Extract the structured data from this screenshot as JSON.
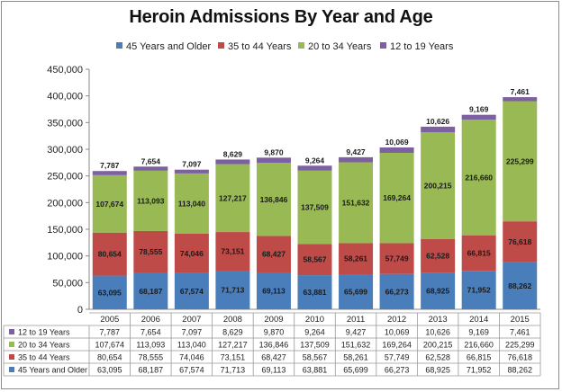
{
  "chart_data": {
    "type": "bar",
    "stacked": true,
    "title": "Heroin Admissions By Year and Age",
    "categories": [
      "2005",
      "2006",
      "2007",
      "2008",
      "2009",
      "2010",
      "2011",
      "2012",
      "2013",
      "2014",
      "2015"
    ],
    "series": [
      {
        "name": "45 Years and Older",
        "color": "#4a7ebb",
        "values": [
          63095,
          68187,
          67574,
          71713,
          69113,
          63881,
          65699,
          66273,
          68925,
          71952,
          88262
        ],
        "labels": [
          "63,095",
          "68,187",
          "67,574",
          "71,713",
          "69,113",
          "63,881",
          "65,699",
          "66,273",
          "68,925",
          "71,952",
          "88,262"
        ]
      },
      {
        "name": "35 to 44 Years",
        "color": "#be4b48",
        "values": [
          80654,
          78555,
          74046,
          73151,
          68427,
          58567,
          58261,
          57749,
          62528,
          66815,
          76618
        ],
        "labels": [
          "80,654",
          "78,555",
          "74,046",
          "73,151",
          "68,427",
          "58,567",
          "58,261",
          "57,749",
          "62,528",
          "66,815",
          "76,618"
        ]
      },
      {
        "name": "20 to 34 Years",
        "color": "#98b954",
        "values": [
          107674,
          113093,
          113040,
          127217,
          136846,
          137509,
          151632,
          169264,
          200215,
          216660,
          225299
        ],
        "labels": [
          "107,674",
          "113,093",
          "113,040",
          "127,217",
          "136,846",
          "137,509",
          "151,632",
          "169,264",
          "200,215",
          "216,660",
          "225,299"
        ]
      },
      {
        "name": "12 to 19 Years",
        "color": "#7d60a0",
        "values": [
          7787,
          7654,
          7097,
          8629,
          9870,
          9264,
          9427,
          10069,
          10626,
          9169,
          7461
        ],
        "labels": [
          "7,787",
          "7,654",
          "7,097",
          "8,629",
          "9,870",
          "9,264",
          "9,427",
          "10,069",
          "10,626",
          "9,169",
          "7,461"
        ]
      }
    ],
    "ylim": [
      0,
      450000
    ],
    "yticks": [
      0,
      50000,
      100000,
      150000,
      200000,
      250000,
      300000,
      350000,
      400000,
      450000
    ],
    "ytick_labels": [
      "0",
      "50,000",
      "100,000",
      "150,000",
      "200,000",
      "250,000",
      "300,000",
      "350,000",
      "400,000",
      "450,000"
    ],
    "legend_position": "top",
    "data_table_order": [
      "12 to 19 Years",
      "20 to 34 Years",
      "35 to 44 Years",
      "45 Years and Older"
    ]
  }
}
